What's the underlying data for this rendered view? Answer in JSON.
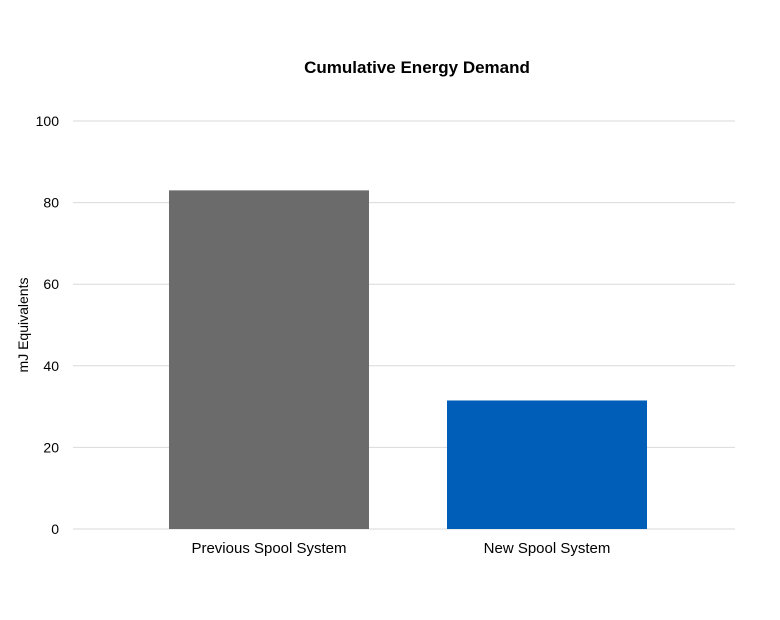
{
  "chart_data": {
    "type": "bar",
    "title": "Cumulative Energy Demand",
    "xlabel": "",
    "ylabel": "mJ Equivalents",
    "categories": [
      "Previous Spool System",
      "New Spool System"
    ],
    "values": [
      83,
      31.5
    ],
    "colors": [
      "#6b6b6b",
      "#005eb8"
    ],
    "ylim": [
      0,
      100
    ],
    "yticks": [
      0,
      20,
      40,
      60,
      80,
      100
    ],
    "grid": true,
    "legend": "none"
  }
}
